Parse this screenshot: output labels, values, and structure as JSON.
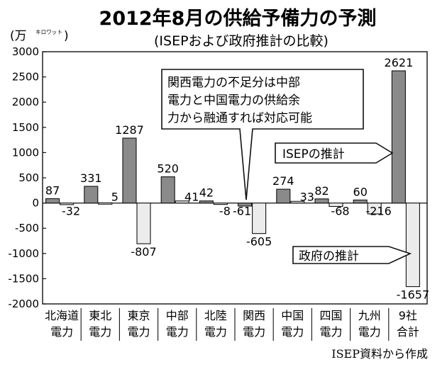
{
  "chart_data": {
    "type": "bar",
    "title": "2012年8月の供給予備力の予測",
    "subtitle": "(ISEPおよび政府推計の比較)",
    "unit_label": "(万",
    "unit_ruby": "キロワット",
    "unit_close": ")",
    "ylim": [
      -2000,
      3000
    ],
    "yticks": [
      -2000,
      -1500,
      -1000,
      -500,
      0,
      500,
      1000,
      1500,
      2000,
      2500,
      3000
    ],
    "grid": false,
    "categories": [
      [
        "北海道",
        "電力"
      ],
      [
        "東北",
        "電力"
      ],
      [
        "東京",
        "電力"
      ],
      [
        "中部",
        "電力"
      ],
      [
        "北陸",
        "電力"
      ],
      [
        "関西",
        "電力"
      ],
      [
        "中国",
        "電力"
      ],
      [
        "四国",
        "電力"
      ],
      [
        "九州",
        "電力"
      ],
      [
        "9社",
        "合計"
      ]
    ],
    "series": [
      {
        "name": "ISEPの推計",
        "color": "#8a8a8a",
        "values": [
          87,
          331,
          1287,
          520,
          42,
          -61,
          274,
          82,
          60,
          2621
        ]
      },
      {
        "name": "政府の推計",
        "color": "#ececec",
        "values": [
          -32,
          5,
          -807,
          41,
          -8,
          -605,
          33,
          -68,
          -216,
          -1657
        ]
      }
    ],
    "labels": [
      [
        "87",
        "-32"
      ],
      [
        "331",
        "5"
      ],
      [
        "1287",
        "-807"
      ],
      [
        "520",
        "41"
      ],
      [
        "42",
        "-8"
      ],
      [
        "-61",
        "-605"
      ],
      [
        "274",
        "33"
      ],
      [
        "82",
        "-68"
      ],
      [
        "60",
        "-216"
      ],
      [
        "2621",
        "-1657"
      ]
    ],
    "annotation": {
      "lines": [
        "関西電力の不足分は中部",
        "電力と中国電力の供給余",
        "力から融通すれば対応可能"
      ]
    },
    "source": "ISEP資料から作成"
  }
}
